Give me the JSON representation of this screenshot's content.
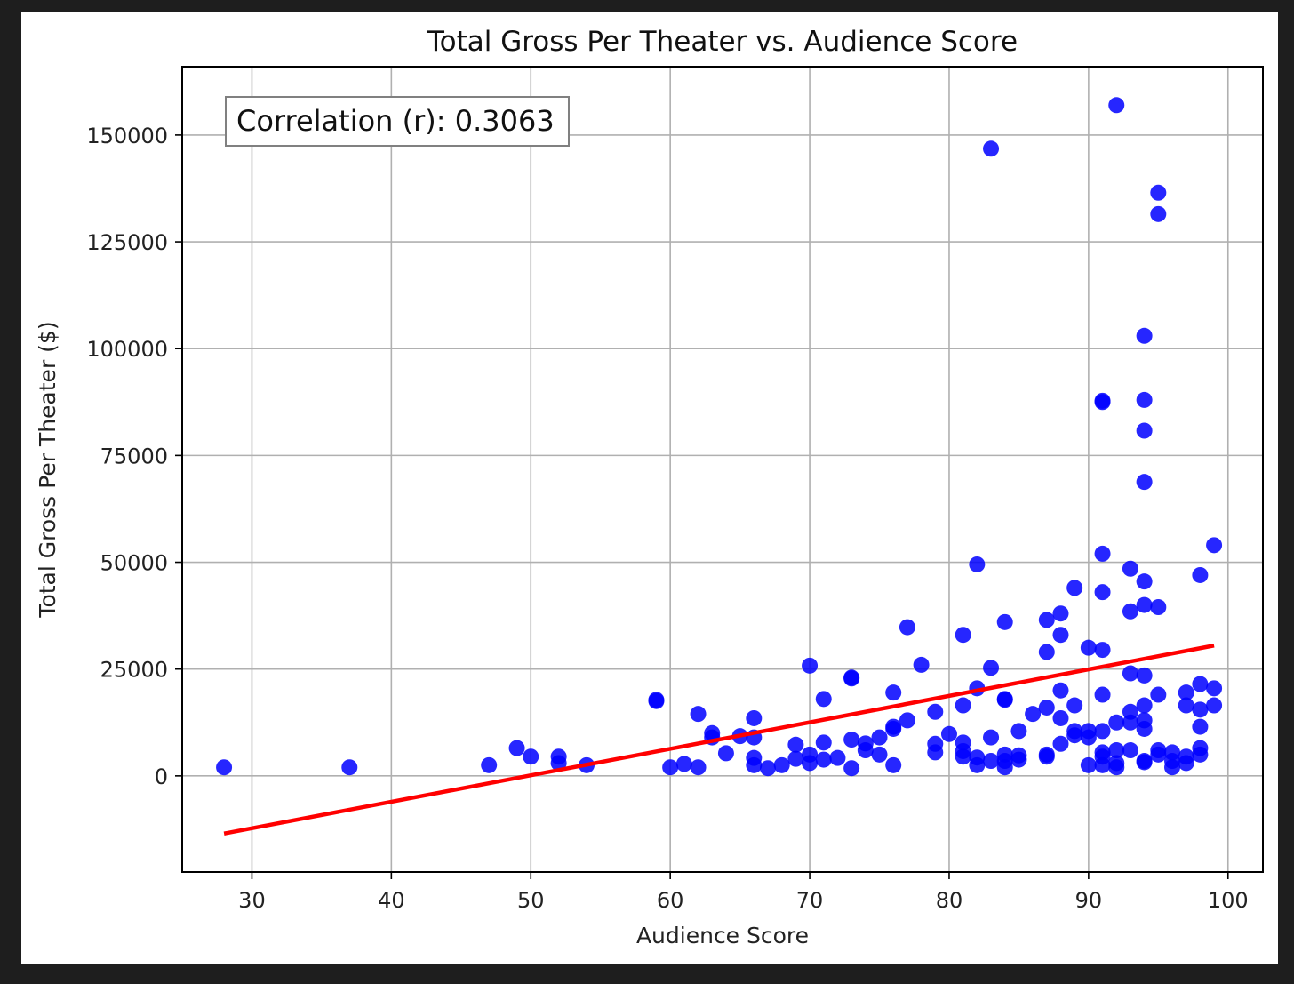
{
  "chart_data": {
    "type": "scatter",
    "title": "Total Gross Per Theater vs. Audience Score",
    "xlabel": "Audience Score",
    "ylabel": "Total Gross Per Theater ($)",
    "xlim": [
      25,
      102.5
    ],
    "ylim": [
      -22500,
      166000
    ],
    "x_ticks": [
      30,
      40,
      50,
      60,
      70,
      80,
      90,
      100
    ],
    "y_ticks": [
      0,
      25000,
      50000,
      75000,
      100000,
      125000,
      150000
    ],
    "grid": true,
    "point_color": "#0000ff",
    "line_color": "#ff0000",
    "annotation": "Correlation (r): 0.3063",
    "annotation_position": "top-left",
    "trend_line": {
      "x": [
        28,
        99
      ],
      "y": [
        -13500,
        30500
      ]
    },
    "points": [
      [
        28,
        2000
      ],
      [
        37,
        2000
      ],
      [
        47,
        2500
      ],
      [
        49,
        6500
      ],
      [
        50,
        4500
      ],
      [
        52,
        4500
      ],
      [
        52,
        3000
      ],
      [
        54,
        2500
      ],
      [
        59,
        17500
      ],
      [
        59,
        17800
      ],
      [
        60,
        2000
      ],
      [
        61,
        2800
      ],
      [
        62,
        2000
      ],
      [
        62,
        14500
      ],
      [
        63,
        9000
      ],
      [
        63,
        10000
      ],
      [
        64,
        5300
      ],
      [
        65,
        9300
      ],
      [
        66,
        13500
      ],
      [
        66,
        9000
      ],
      [
        66,
        4200
      ],
      [
        66,
        2500
      ],
      [
        67,
        1800
      ],
      [
        68,
        2500
      ],
      [
        69,
        7300
      ],
      [
        69,
        4000
      ],
      [
        70,
        25800
      ],
      [
        70,
        5000
      ],
      [
        70,
        3000
      ],
      [
        71,
        18000
      ],
      [
        71,
        7800
      ],
      [
        71,
        3800
      ],
      [
        72,
        4200
      ],
      [
        73,
        23000
      ],
      [
        73,
        22800
      ],
      [
        73,
        8500
      ],
      [
        73,
        1800
      ],
      [
        74,
        7600
      ],
      [
        74,
        6000
      ],
      [
        75,
        9000
      ],
      [
        75,
        5000
      ],
      [
        76,
        19500
      ],
      [
        76,
        11500
      ],
      [
        76,
        11000
      ],
      [
        76,
        2500
      ],
      [
        77,
        34800
      ],
      [
        77,
        13000
      ],
      [
        78,
        26000
      ],
      [
        79,
        15000
      ],
      [
        79,
        7500
      ],
      [
        79,
        5500
      ],
      [
        80,
        9800
      ],
      [
        81,
        33000
      ],
      [
        81,
        16500
      ],
      [
        81,
        7800
      ],
      [
        81,
        5800
      ],
      [
        81,
        4500
      ],
      [
        82,
        49500
      ],
      [
        82,
        20500
      ],
      [
        82,
        4300
      ],
      [
        82,
        2500
      ],
      [
        83,
        146800
      ],
      [
        83,
        25300
      ],
      [
        83,
        9000
      ],
      [
        83,
        3500
      ],
      [
        84,
        36000
      ],
      [
        84,
        18000
      ],
      [
        84,
        17800
      ],
      [
        84,
        5000
      ],
      [
        84,
        3500
      ],
      [
        84,
        2000
      ],
      [
        85,
        10500
      ],
      [
        85,
        4800
      ],
      [
        85,
        3800
      ],
      [
        86,
        14500
      ],
      [
        87,
        36500
      ],
      [
        87,
        29000
      ],
      [
        87,
        16000
      ],
      [
        87,
        5000
      ],
      [
        87,
        4500
      ],
      [
        88,
        38000
      ],
      [
        88,
        33000
      ],
      [
        88,
        20000
      ],
      [
        88,
        13500
      ],
      [
        88,
        7500
      ],
      [
        89,
        44000
      ],
      [
        89,
        16500
      ],
      [
        89,
        10500
      ],
      [
        89,
        9500
      ],
      [
        90,
        30000
      ],
      [
        90,
        10500
      ],
      [
        90,
        9000
      ],
      [
        90,
        2500
      ],
      [
        91,
        87500
      ],
      [
        91,
        87800
      ],
      [
        91,
        52000
      ],
      [
        91,
        43000
      ],
      [
        91,
        29500
      ],
      [
        91,
        19000
      ],
      [
        91,
        10500
      ],
      [
        91,
        5500
      ],
      [
        91,
        4500
      ],
      [
        91,
        2500
      ],
      [
        92,
        157000
      ],
      [
        92,
        12500
      ],
      [
        92,
        6000
      ],
      [
        92,
        3000
      ],
      [
        92,
        2000
      ],
      [
        93,
        48500
      ],
      [
        93,
        38500
      ],
      [
        93,
        24000
      ],
      [
        93,
        15000
      ],
      [
        93,
        12500
      ],
      [
        93,
        6000
      ],
      [
        94,
        103000
      ],
      [
        94,
        88000
      ],
      [
        94,
        80800
      ],
      [
        94,
        68800
      ],
      [
        94,
        45500
      ],
      [
        94,
        40000
      ],
      [
        94,
        23500
      ],
      [
        94,
        16500
      ],
      [
        94,
        13000
      ],
      [
        94,
        11000
      ],
      [
        94,
        3500
      ],
      [
        94,
        3200
      ],
      [
        95,
        136500
      ],
      [
        95,
        131500
      ],
      [
        95,
        39500
      ],
      [
        95,
        19000
      ],
      [
        95,
        6000
      ],
      [
        95,
        5000
      ],
      [
        96,
        5500
      ],
      [
        96,
        3500
      ],
      [
        96,
        2000
      ],
      [
        97,
        19500
      ],
      [
        97,
        16500
      ],
      [
        97,
        4500
      ],
      [
        97,
        3000
      ],
      [
        98,
        47000
      ],
      [
        98,
        21500
      ],
      [
        98,
        15500
      ],
      [
        98,
        11500
      ],
      [
        98,
        6500
      ],
      [
        98,
        5000
      ],
      [
        99,
        54000
      ],
      [
        99,
        20500
      ],
      [
        99,
        16500
      ]
    ]
  }
}
